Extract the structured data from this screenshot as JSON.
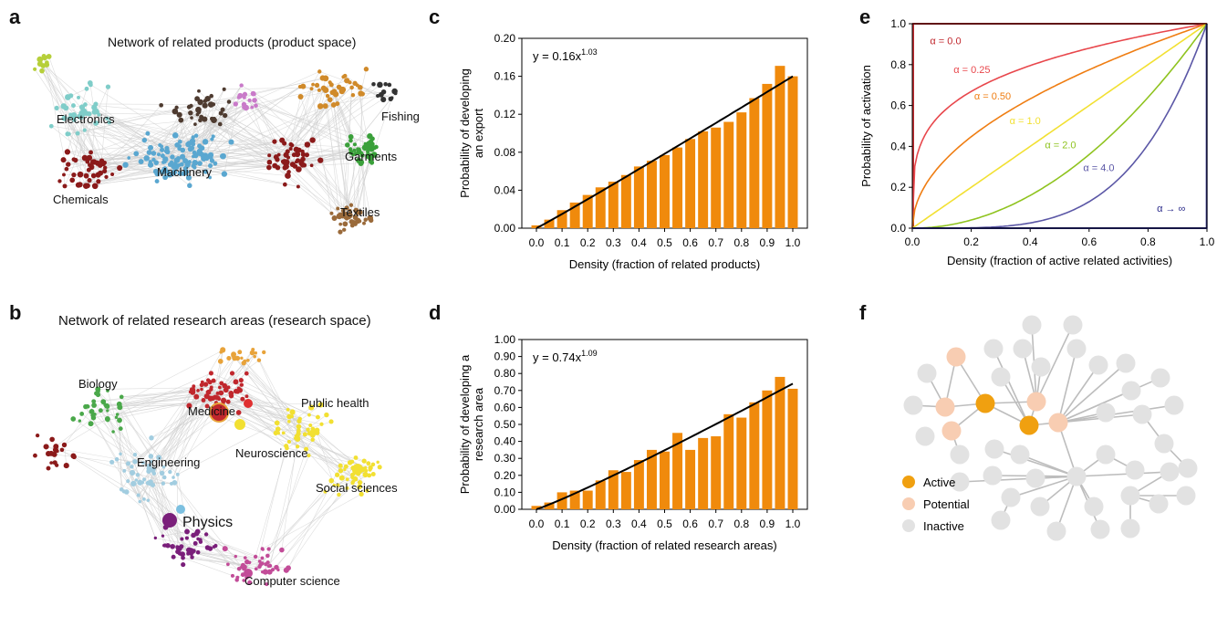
{
  "panels": {
    "a": {
      "letter": "a",
      "title": "Network of related products (product space)",
      "labels": [
        "Electronics",
        "Machinery",
        "Chemicals",
        "Garments",
        "Textiles",
        "Fishing"
      ],
      "colors": {
        "edge": "#cfcfcf",
        "clusters": [
          "#7fcdc9",
          "#8b1a1a",
          "#5aa7d0",
          "#4e3b30",
          "#d08a2a",
          "#3aa03a",
          "#c97ac9",
          "#b6cf3a",
          "#9a6a3a",
          "#333333"
        ]
      }
    },
    "b": {
      "letter": "b",
      "title": "Network of related research areas (research space)",
      "labels": [
        "Biology",
        "Medicine",
        "Public health",
        "Engineering",
        "Neuroscience",
        "Social sciences",
        "Physics",
        "Computer science"
      ],
      "colors": {
        "edge": "#cfcfcf",
        "clusters": [
          "#4aa84a",
          "#c0272d",
          "#a2cde0",
          "#f2e032",
          "#7a1f7a",
          "#c24c98",
          "#e8a33a",
          "#8b1a1a"
        ]
      }
    },
    "f": {
      "letter": "f",
      "legend": [
        {
          "label": "Active",
          "color": "#f0a010"
        },
        {
          "label": "Potential",
          "color": "#f8cdb2"
        },
        {
          "label": "Inactive",
          "color": "#e2e2e2"
        }
      ]
    }
  },
  "chart_data": [
    {
      "id": "c",
      "letter": "c",
      "type": "bar",
      "xlabel": "Density (fraction of related products)",
      "ylabel": "Probability of developing|an export",
      "annotation": {
        "prefix": "y = 0.16x",
        "sup": "1.03"
      },
      "ylim": [
        0,
        0.2
      ],
      "yticks": [
        "0.00",
        "0.04",
        "0.08",
        "0.12",
        "0.16",
        "0.20"
      ],
      "xticks": [
        "0.0",
        "0.1",
        "0.2",
        "0.3",
        "0.4",
        "0.5",
        "0.6",
        "0.7",
        "0.8",
        "0.9",
        "1.0"
      ],
      "bar_color": "#f08a0c",
      "x": [
        0.0,
        0.05,
        0.1,
        0.15,
        0.2,
        0.25,
        0.3,
        0.35,
        0.4,
        0.45,
        0.5,
        0.55,
        0.6,
        0.65,
        0.7,
        0.75,
        0.8,
        0.85,
        0.9,
        0.95,
        1.0
      ],
      "values": [
        0.003,
        0.009,
        0.019,
        0.027,
        0.035,
        0.043,
        0.049,
        0.056,
        0.065,
        0.071,
        0.077,
        0.085,
        0.094,
        0.102,
        0.106,
        0.112,
        0.122,
        0.137,
        0.152,
        0.171,
        0.16
      ],
      "fit": {
        "a": 0.16,
        "b": 1.03
      }
    },
    {
      "id": "d",
      "letter": "d",
      "type": "bar",
      "xlabel": "Density (fraction of related research areas)",
      "ylabel": "Probability of developing a|research area",
      "annotation": {
        "prefix": "y = 0.74x",
        "sup": "1.09"
      },
      "ylim": [
        0,
        1.0
      ],
      "yticks": [
        "0.00",
        "0.10",
        "0.20",
        "0.30",
        "0.40",
        "0.50",
        "0.60",
        "0.70",
        "0.80",
        "0.90",
        "1.00"
      ],
      "xticks": [
        "0.0",
        "0.1",
        "0.2",
        "0.3",
        "0.4",
        "0.5",
        "0.6",
        "0.7",
        "0.8",
        "0.9",
        "1.0"
      ],
      "bar_color": "#f08a0c",
      "x": [
        0.0,
        0.05,
        0.1,
        0.15,
        0.2,
        0.25,
        0.3,
        0.35,
        0.4,
        0.45,
        0.5,
        0.55,
        0.6,
        0.65,
        0.7,
        0.75,
        0.8,
        0.85,
        0.9,
        0.95,
        1.0
      ],
      "values": [
        0.02,
        0.04,
        0.1,
        0.11,
        0.11,
        0.17,
        0.23,
        0.22,
        0.29,
        0.35,
        0.34,
        0.45,
        0.35,
        0.42,
        0.43,
        0.56,
        0.54,
        0.63,
        0.7,
        0.78,
        0.71
      ],
      "fit": {
        "a": 0.74,
        "b": 1.09
      }
    },
    {
      "id": "e",
      "letter": "e",
      "type": "line",
      "xlabel": "Density (fraction of active related activities)",
      "ylabel": "Probability of activation",
      "xlim": [
        0,
        1
      ],
      "ylim": [
        0,
        1
      ],
      "xticks": [
        "0.0",
        "0.2",
        "0.4",
        "0.6",
        "0.8",
        "1.0"
      ],
      "yticks": [
        "0.0",
        "0.2",
        "0.4",
        "0.6",
        "0.8",
        "1.0"
      ],
      "series": [
        {
          "name": "α = 0.0",
          "alpha": 0.0,
          "color": "#c0272d"
        },
        {
          "name": "α = 0.25",
          "alpha": 0.25,
          "color": "#e8474c"
        },
        {
          "name": "α = 0.50",
          "alpha": 0.5,
          "color": "#ef7d12"
        },
        {
          "name": "α = 1.0",
          "alpha": 1.0,
          "color": "#f2e032"
        },
        {
          "name": "α = 2.0",
          "alpha": 2.0,
          "color": "#8fc31f"
        },
        {
          "name": "α = 4.0",
          "alpha": 4.0,
          "color": "#5b57a6"
        },
        {
          "name": "α → ∞",
          "alpha": "inf",
          "color": "#2a2a8a"
        }
      ]
    }
  ]
}
